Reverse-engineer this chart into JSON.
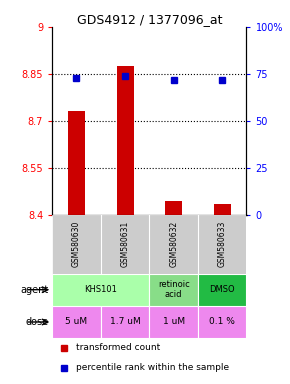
{
  "title": "GDS4912 / 1377096_at",
  "samples": [
    "GSM580630",
    "GSM580631",
    "GSM580632",
    "GSM580633"
  ],
  "bar_values": [
    8.73,
    8.875,
    8.445,
    8.435
  ],
  "dot_values": [
    73,
    74,
    72,
    72
  ],
  "ylim_left": [
    8.4,
    9.0
  ],
  "ylim_right": [
    0,
    100
  ],
  "yticks_left": [
    8.4,
    8.55,
    8.7,
    8.85,
    9.0
  ],
  "ytick_labels_left": [
    "8.4",
    "8.55",
    "8.7",
    "8.85",
    "9"
  ],
  "yticks_right": [
    0,
    25,
    50,
    75,
    100
  ],
  "ytick_labels_right": [
    "0",
    "25",
    "50",
    "75",
    "100%"
  ],
  "hlines": [
    8.55,
    8.7,
    8.85
  ],
  "bar_color": "#cc0000",
  "dot_color": "#0000cc",
  "bar_bottom": 8.4,
  "doses": [
    "5 uM",
    "1.7 uM",
    "1 uM",
    "0.1 %"
  ],
  "dose_color": "#ee88ee",
  "sample_bg": "#cccccc",
  "legend_bar_color": "#cc0000",
  "legend_dot_color": "#0000cc",
  "agent_groups": [
    {
      "label": "KHS101",
      "start": 0,
      "end": 2,
      "color": "#aaffaa"
    },
    {
      "label": "retinoic\nacid",
      "start": 2,
      "end": 3,
      "color": "#88dd88"
    },
    {
      "label": "DMSO",
      "start": 3,
      "end": 4,
      "color": "#22bb44"
    }
  ]
}
